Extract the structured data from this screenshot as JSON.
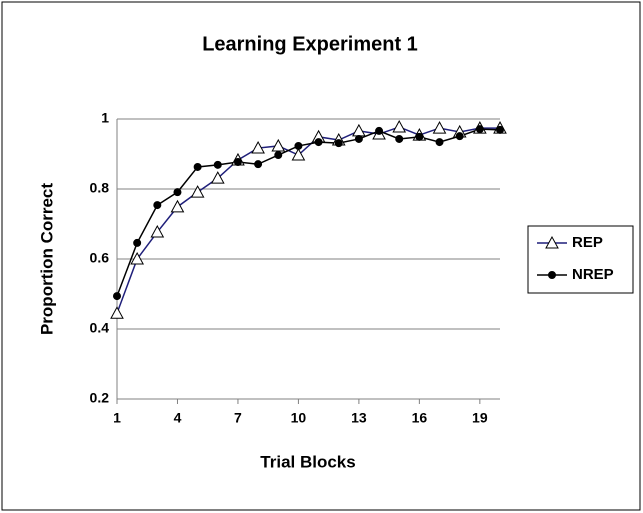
{
  "chart_data": {
    "type": "line",
    "title": "Learning Experiment 1",
    "x_label": "Trial Blocks",
    "y_label": "Proportion Correct",
    "x": [
      1,
      2,
      3,
      4,
      5,
      6,
      7,
      8,
      9,
      10,
      11,
      12,
      13,
      14,
      15,
      16,
      17,
      18,
      19,
      20
    ],
    "series": [
      {
        "name": "REP",
        "color": "#1f1f7a",
        "marker": "triangle",
        "values": [
          0.445,
          0.6,
          0.677,
          0.749,
          0.791,
          0.831,
          0.883,
          0.917,
          0.923,
          0.897,
          0.949,
          0.94,
          0.966,
          0.957,
          0.977,
          0.954,
          0.974,
          0.963,
          0.974,
          0.974
        ]
      },
      {
        "name": "NREP",
        "color": "#000000",
        "marker": "circle",
        "values": [
          0.494,
          0.646,
          0.754,
          0.791,
          0.863,
          0.869,
          0.877,
          0.871,
          0.897,
          0.923,
          0.934,
          0.931,
          0.943,
          0.966,
          0.943,
          0.949,
          0.934,
          0.951,
          0.971,
          0.969
        ]
      }
    ],
    "xlim": [
      1,
      20
    ],
    "xticks": [
      1,
      4,
      7,
      10,
      13,
      16,
      19
    ],
    "ylim": [
      0.2,
      1
    ],
    "yticks": [
      0.2,
      0.4,
      0.6,
      0.8,
      1
    ],
    "grid": true,
    "legend": "right"
  }
}
